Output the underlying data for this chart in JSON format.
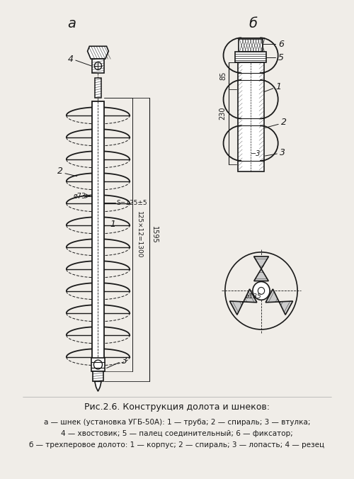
{
  "title": "Рис.2.6. Конструкция долота и шнеков:",
  "caption_line1": "а — шнек (установка УГБ-50А): 1 — труба; 2 — спираль; 3 — втулка;",
  "caption_line2": "4 — хвостовик; 5 — палец соединительный; 6 — фиксатор;",
  "caption_line3": "б — трехперовое долото: 1 — корпус; 2 — спираль; 3 — лопасть; 4 — резец",
  "label_a": "а",
  "label_b": "б",
  "bg_color": "#f0ede8",
  "line_color": "#1a1a1a",
  "fig_width": 5.0,
  "fig_height": 6.76
}
